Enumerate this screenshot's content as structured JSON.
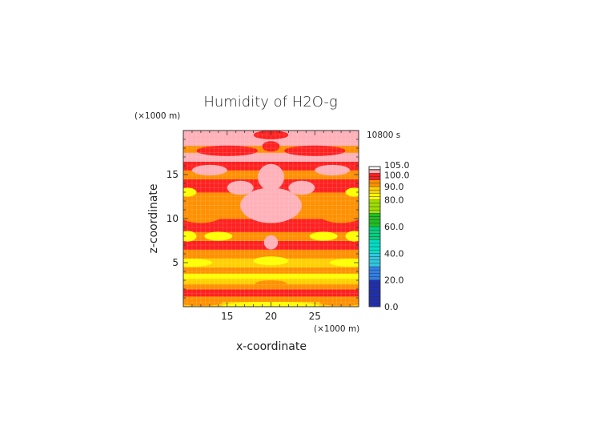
{
  "chart_data": {
    "type": "heatmap",
    "title": "Humidity of H2O-g",
    "xlabel": "x-coordinate",
    "ylabel": "z-coordinate",
    "x_unit": "(×1000 m)",
    "y_unit": "(×1000 m)",
    "time_label": "10800 s",
    "xlim": [
      10,
      30
    ],
    "ylim": [
      0,
      20
    ],
    "x_ticks": [
      15,
      20,
      25
    ],
    "y_ticks": [
      5,
      10,
      15
    ],
    "colorbar": {
      "ticks": [
        {
          "value": 0,
          "label": "0.0"
        },
        {
          "value": 20,
          "label": "20.0"
        },
        {
          "value": 40,
          "label": "40.0"
        },
        {
          "value": 60,
          "label": "60.0"
        },
        {
          "value": 80,
          "label": "80.0"
        },
        {
          "value": 90,
          "label": "90.0"
        },
        {
          "value": 100,
          "label": "100.0"
        },
        {
          "value": 105,
          "label": "105.0"
        }
      ],
      "levels": [
        {
          "from": 0,
          "to": 20,
          "color": "#1f2fb0"
        },
        {
          "from": 20,
          "to": 30,
          "color": "#2f7fe8"
        },
        {
          "from": 30,
          "to": 40,
          "color": "#2fc8e0"
        },
        {
          "from": 40,
          "to": 50,
          "color": "#00e0c8"
        },
        {
          "from": 50,
          "to": 60,
          "color": "#00d080"
        },
        {
          "from": 60,
          "to": 70,
          "color": "#20c020"
        },
        {
          "from": 70,
          "to": 80,
          "color": "#a0e000"
        },
        {
          "from": 80,
          "to": 85,
          "color": "#ffff00"
        },
        {
          "from": 85,
          "to": 90,
          "color": "#ffd000"
        },
        {
          "from": 90,
          "to": 95,
          "color": "#ff9000"
        },
        {
          "from": 95,
          "to": 100,
          "color": "#ff2020"
        },
        {
          "from": 100,
          "to": 105,
          "color": "#ffb0b8"
        }
      ]
    },
    "bands": [
      {
        "z": [
          0.0,
          0.6
        ],
        "value": 85
      },
      {
        "z": [
          0.6,
          1.2
        ],
        "value": 92
      },
      {
        "z": [
          1.2,
          2.0
        ],
        "value": 96
      },
      {
        "z": [
          2.0,
          2.6
        ],
        "value": 91
      },
      {
        "z": [
          2.6,
          3.2
        ],
        "value": 88
      },
      {
        "z": [
          3.2,
          3.8
        ],
        "value": 83
      },
      {
        "z": [
          3.8,
          4.5
        ],
        "value": 93
      },
      {
        "z": [
          4.5,
          5.5
        ],
        "value": 89
      },
      {
        "z": [
          5.5,
          6.5
        ],
        "value": 93
      },
      {
        "z": [
          6.5,
          7.5
        ],
        "value": 96
      },
      {
        "z": [
          7.5,
          8.5
        ],
        "value": 90
      },
      {
        "z": [
          8.5,
          10.0
        ],
        "value": 96
      },
      {
        "z": [
          10.0,
          11.5
        ],
        "value": 93
      },
      {
        "z": [
          11.5,
          13.0
        ],
        "value": 90
      },
      {
        "z": [
          13.0,
          14.5
        ],
        "value": 96
      },
      {
        "z": [
          14.5,
          15.5
        ],
        "value": 92
      },
      {
        "z": [
          15.5,
          16.5
        ],
        "value": 96
      },
      {
        "z": [
          16.5,
          17.5
        ],
        "value": 101
      },
      {
        "z": [
          17.5,
          18.3
        ],
        "value": 93
      },
      {
        "z": [
          18.3,
          19.3
        ],
        "value": 101
      },
      {
        "z": [
          19.3,
          20.0
        ],
        "value": 102
      }
    ],
    "blobs": [
      {
        "x": 20,
        "z": 0.1,
        "rx": 5.5,
        "rz": 0.45,
        "value": 84
      },
      {
        "x": 12,
        "z": 0.5,
        "rx": 2.5,
        "rz": 0.4,
        "value": 90
      },
      {
        "x": 28,
        "z": 0.5,
        "rx": 2.5,
        "rz": 0.4,
        "value": 90
      },
      {
        "x": 20,
        "z": 2.6,
        "rx": 1.8,
        "rz": 0.4,
        "value": 91
      },
      {
        "x": 11,
        "z": 5.0,
        "rx": 2.3,
        "rz": 0.45,
        "value": 84
      },
      {
        "x": 29,
        "z": 5.0,
        "rx": 2.3,
        "rz": 0.45,
        "value": 84
      },
      {
        "x": 20,
        "z": 5.2,
        "rx": 2.0,
        "rz": 0.5,
        "value": 84
      },
      {
        "x": 14,
        "z": 8.0,
        "rx": 1.6,
        "rz": 0.5,
        "value": 84
      },
      {
        "x": 26,
        "z": 8.0,
        "rx": 1.6,
        "rz": 0.5,
        "value": 84
      },
      {
        "x": 10.5,
        "z": 8.0,
        "rx": 1.0,
        "rz": 0.6,
        "value": 84
      },
      {
        "x": 29.5,
        "z": 8.0,
        "rx": 1.0,
        "rz": 0.6,
        "value": 84
      },
      {
        "x": 10.5,
        "z": 13.0,
        "rx": 1.0,
        "rz": 0.5,
        "value": 84
      },
      {
        "x": 29.5,
        "z": 13.0,
        "rx": 1.0,
        "rz": 0.5,
        "value": 84
      },
      {
        "x": 12,
        "z": 10.5,
        "rx": 2.5,
        "rz": 1.0,
        "value": 90
      },
      {
        "x": 28,
        "z": 10.5,
        "rx": 2.5,
        "rz": 1.0,
        "value": 90
      },
      {
        "x": 20,
        "z": 7.3,
        "rx": 0.8,
        "rz": 0.8,
        "value": 102
      },
      {
        "x": 20,
        "z": 11.5,
        "rx": 3.5,
        "rz": 2.0,
        "value": 102
      },
      {
        "x": 20,
        "z": 14.7,
        "rx": 1.5,
        "rz": 1.5,
        "value": 102
      },
      {
        "x": 16.5,
        "z": 13.5,
        "rx": 1.5,
        "rz": 0.8,
        "value": 102
      },
      {
        "x": 23.5,
        "z": 13.5,
        "rx": 1.5,
        "rz": 0.8,
        "value": 102
      },
      {
        "x": 13,
        "z": 15.5,
        "rx": 2.0,
        "rz": 0.6,
        "value": 102
      },
      {
        "x": 27,
        "z": 15.5,
        "rx": 2.0,
        "rz": 0.6,
        "value": 102
      },
      {
        "x": 15,
        "z": 17.7,
        "rx": 3.5,
        "rz": 0.6,
        "value": 96
      },
      {
        "x": 25,
        "z": 17.7,
        "rx": 3.5,
        "rz": 0.6,
        "value": 96
      },
      {
        "x": 20,
        "z": 18.2,
        "rx": 1.0,
        "rz": 0.6,
        "value": 96
      },
      {
        "x": 20,
        "z": 19.5,
        "rx": 2.0,
        "rz": 0.5,
        "value": 96
      }
    ]
  }
}
